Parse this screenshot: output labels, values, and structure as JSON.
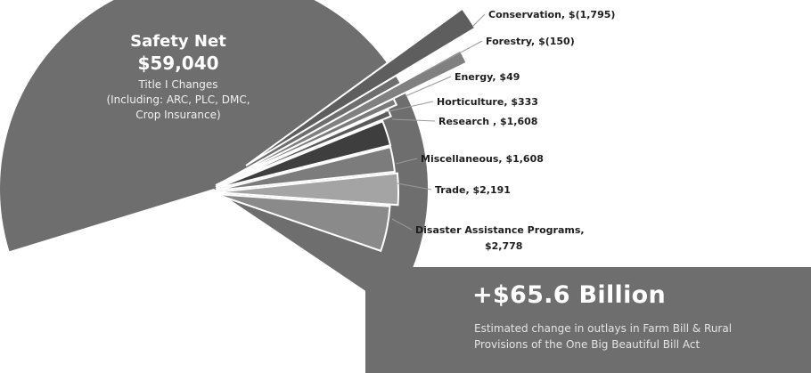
{
  "chart_data": {
    "type": "pie",
    "slices": [
      {
        "label": "Safety Net",
        "display_value": "$59,040",
        "value": 59040,
        "color": "#6e6e6e"
      },
      {
        "label": "Disaster Assistance Programs,",
        "label_line2": "$2,778",
        "display_value": "$2,778",
        "value": 2778,
        "color": "#8a8a8a"
      },
      {
        "label": "Trade,  $2,191",
        "display_value": "$2,191",
        "value": 2191,
        "color": "#a4a4a4"
      },
      {
        "label": "Miscellaneous,  $1,608",
        "display_value": "$1,608",
        "value": 1608,
        "color": "#7c7c7c"
      },
      {
        "label": "Research ,  $1,608",
        "display_value": "$1,608",
        "value": 1608,
        "color": "#3e3e3e"
      },
      {
        "label": "Horticulture,  $333",
        "display_value": "$333",
        "value": 333,
        "color": "#5a5a5a"
      },
      {
        "label": "Energy,  $49",
        "display_value": "$49",
        "value": 49,
        "color": "#7a7a7a"
      },
      {
        "label": "Forestry,  $(150)",
        "display_value": "$(150)",
        "value": -150,
        "color": "#808080"
      },
      {
        "label": "Conservation,  $(1,795)",
        "display_value": "$(1,795)",
        "value": -1795,
        "color": "#5e5e5e"
      }
    ],
    "big_slice_text": {
      "title": "Safety Net",
      "value": "$59,040",
      "sub_lines": [
        "Title I Changes",
        "(Including: ARC, PLC, DMC,",
        "Crop Insurance)"
      ]
    },
    "total": "+$65.6 Billion",
    "total_caption": [
      "Estimated change in outlays in Farm Bill & Rural",
      "Provisions of the One Big Beautiful Bill Act"
    ],
    "legend": "none",
    "grid": false
  }
}
